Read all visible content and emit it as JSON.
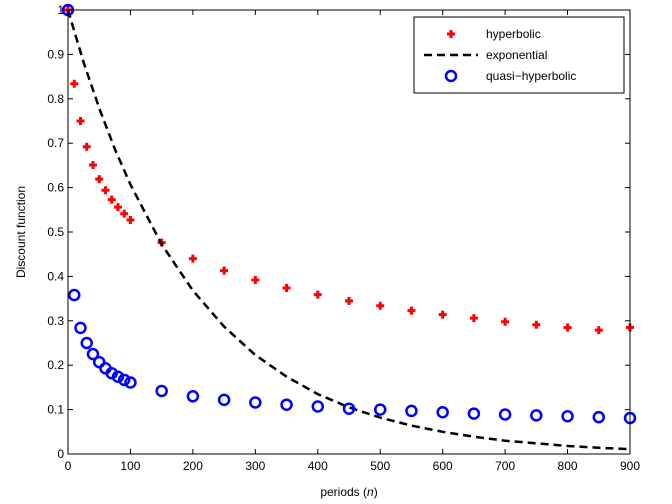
{
  "chart_data": {
    "type": "scatter",
    "xlabel": "periods (n)",
    "xlabel_parts": {
      "before": "periods (",
      "italic": "n",
      "after": ")"
    },
    "ylabel": "Discount function",
    "xlim": [
      0,
      900
    ],
    "ylim": [
      0,
      1
    ],
    "xticks": [
      "0",
      "100",
      "200",
      "300",
      "400",
      "500",
      "600",
      "700",
      "800",
      "900"
    ],
    "yticks": [
      "0",
      "0.1",
      "0.2",
      "0.3",
      "0.4",
      "0.5",
      "0.6",
      "0.7",
      "0.8",
      "0.9",
      "1"
    ],
    "grid": false,
    "legend_position": "top-right",
    "series": [
      {
        "name": "hyperbolic",
        "marker": "plus",
        "color": "#ff0000",
        "x": [
          0,
          10,
          20,
          30,
          40,
          50,
          60,
          70,
          80,
          90,
          100,
          150,
          200,
          250,
          300,
          350,
          400,
          450,
          500,
          550,
          600,
          650,
          700,
          750,
          800,
          850,
          900
        ],
        "y": [
          1.0,
          0.834,
          0.75,
          0.692,
          0.651,
          0.619,
          0.594,
          0.573,
          0.556,
          0.541,
          0.527,
          0.476,
          0.44,
          0.413,
          0.392,
          0.374,
          0.359,
          0.345,
          0.334,
          0.323,
          0.314,
          0.306,
          0.298,
          0.291,
          0.285,
          0.279,
          0.285
        ]
      },
      {
        "name": "exponential",
        "style": "dashed-line",
        "color": "#000000",
        "x": [
          0,
          25,
          50,
          75,
          100,
          150,
          200,
          250,
          300,
          350,
          400,
          450,
          500,
          550,
          600,
          650,
          700,
          750,
          800,
          850,
          900
        ],
        "y": [
          1.0,
          0.882,
          0.779,
          0.687,
          0.607,
          0.472,
          0.368,
          0.287,
          0.223,
          0.174,
          0.135,
          0.105,
          0.082,
          0.064,
          0.05,
          0.039,
          0.03,
          0.024,
          0.018,
          0.014,
          0.011
        ]
      },
      {
        "name": "quasi−hyperbolic",
        "marker": "circle",
        "color": "#0000ff",
        "x": [
          0,
          10,
          20,
          30,
          40,
          50,
          60,
          70,
          80,
          90,
          100,
          150,
          200,
          250,
          300,
          350,
          400,
          450,
          500,
          550,
          600,
          650,
          700,
          750,
          800,
          850,
          900
        ],
        "y": [
          1.0,
          0.358,
          0.284,
          0.25,
          0.225,
          0.207,
          0.193,
          0.182,
          0.174,
          0.167,
          0.161,
          0.142,
          0.13,
          0.122,
          0.116,
          0.111,
          0.107,
          0.102,
          0.1,
          0.097,
          0.094,
          0.091,
          0.089,
          0.087,
          0.085,
          0.083,
          0.081
        ]
      }
    ]
  }
}
